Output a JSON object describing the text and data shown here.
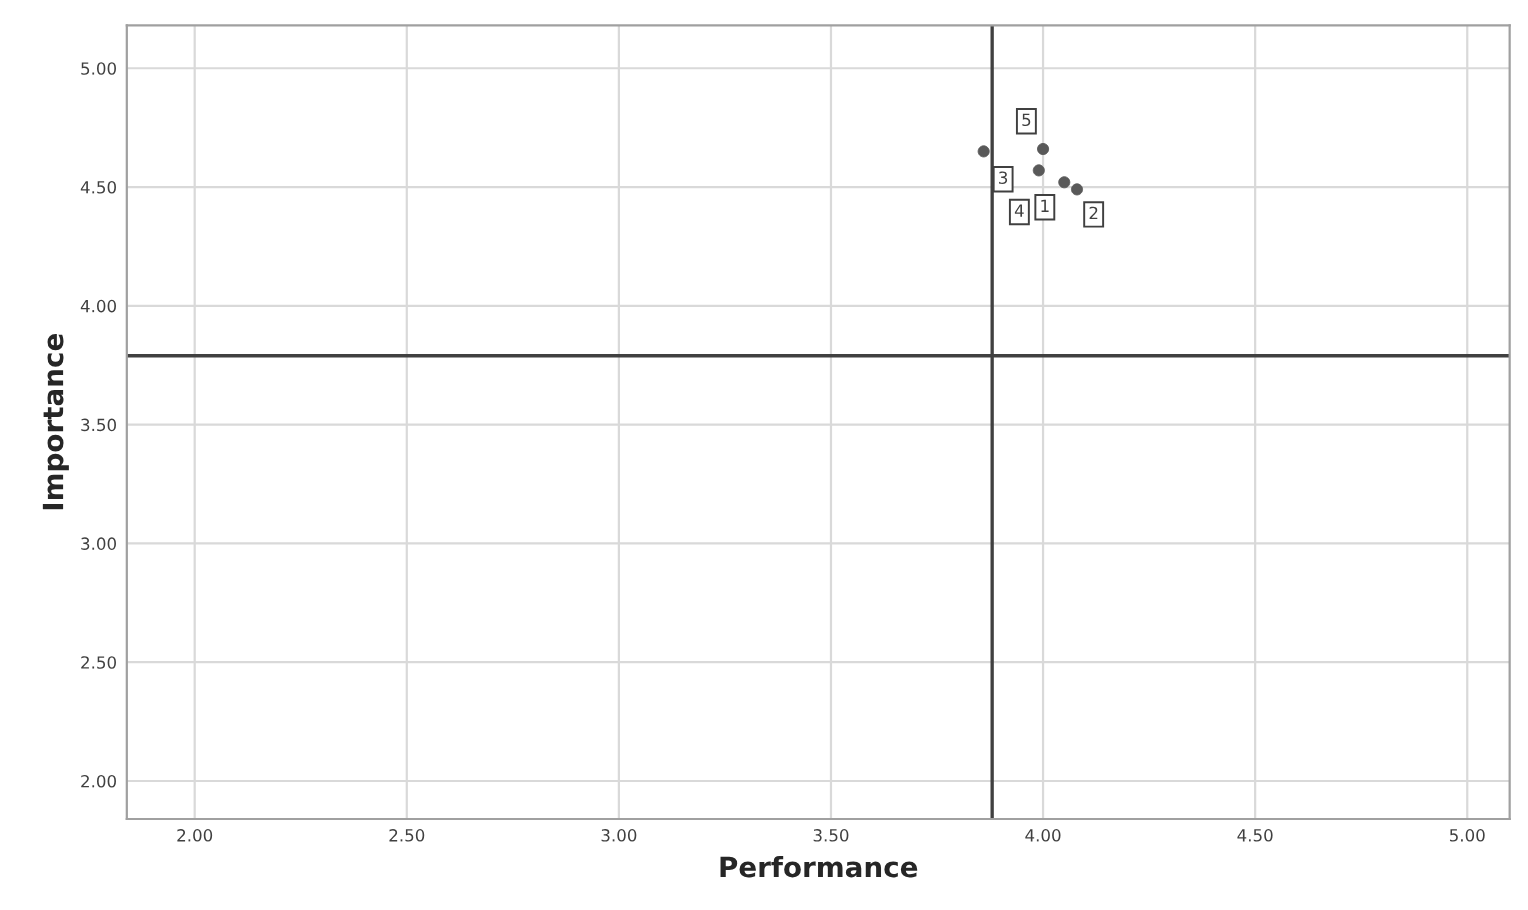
{
  "chart_data": {
    "type": "scatter",
    "xlabel": "Performance",
    "ylabel": "Importance",
    "x": [
      3.86,
      4.0,
      3.99,
      4.05,
      4.08
    ],
    "series": [
      {
        "color": "#595959",
        "values": [
          4.65,
          4.66,
          4.57,
          4.52,
          4.49
        ]
      }
    ],
    "annotations": [
      {
        "text": "3",
        "x": 3.86,
        "y": 4.65
      },
      {
        "text": "5",
        "x": 4.0,
        "y": 4.66
      },
      {
        "text": "4",
        "x": 3.99,
        "y": 4.57
      },
      {
        "text": "1",
        "x": 4.05,
        "y": 4.52
      },
      {
        "text": "2",
        "x": 4.08,
        "y": 4.49
      }
    ],
    "ref_lines": [
      {
        "axis": "x",
        "value": 3.88,
        "color": "#404040"
      },
      {
        "axis": "y",
        "value": 3.79,
        "color": "#404040"
      }
    ],
    "xlim": [
      1.84,
      5.1
    ],
    "ylim": [
      1.84,
      5.18
    ],
    "xticks": [
      {
        "value": 2,
        "label": "2.00"
      },
      {
        "value": 2.5,
        "label": "2.50"
      },
      {
        "value": 3,
        "label": "3.00"
      },
      {
        "value": 3.5,
        "label": "3.50"
      },
      {
        "value": 4,
        "label": "4.00"
      },
      {
        "value": 4.5,
        "label": "4.50"
      },
      {
        "value": 5,
        "label": "5.00"
      }
    ],
    "yticks": [
      {
        "value": 2,
        "label": "2.00"
      },
      {
        "value": 2.5,
        "label": "2.50"
      },
      {
        "value": 3,
        "label": "3.00"
      },
      {
        "value": 3.5,
        "label": "3.50"
      },
      {
        "value": 4,
        "label": "4.00"
      },
      {
        "value": 4.5,
        "label": "4.50"
      },
      {
        "value": 5,
        "label": "5.00"
      }
    ],
    "grid": true,
    "marker": "circle"
  }
}
